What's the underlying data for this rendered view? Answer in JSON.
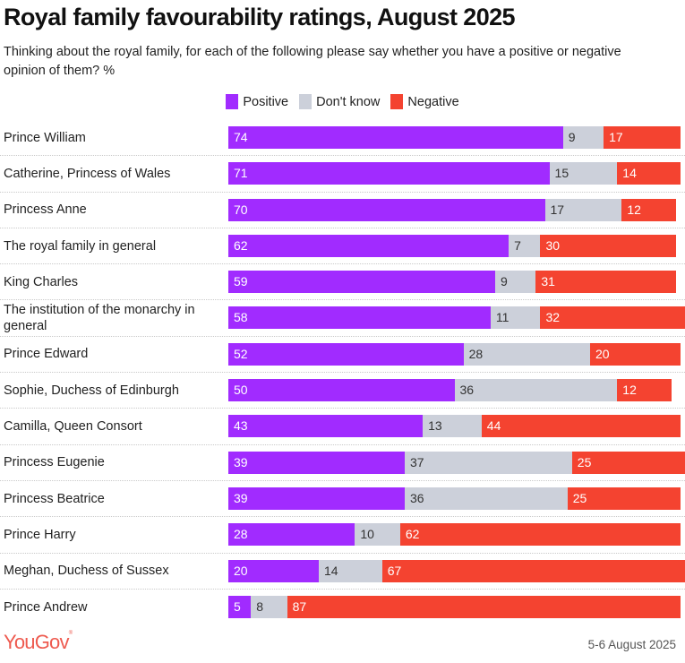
{
  "chart_data": {
    "type": "bar",
    "orientation": "horizontal",
    "stacked": true,
    "title": "Royal family favourability ratings, August 2025",
    "subtitle": "Thinking about the royal family, for each of the following please say whether you have a positive or negative opinion of them? %",
    "xlabel": "",
    "ylabel": "",
    "xlim": [
      0,
      100
    ],
    "grid": false,
    "legend_position": "top-center",
    "categories": [
      "Prince William",
      "Catherine, Princess of Wales",
      "Princess Anne",
      "The royal family in general",
      "King Charles",
      "The institution of the monarchy in general",
      "Prince Edward",
      "Sophie, Duchess of Edinburgh",
      "Camilla, Queen Consort",
      "Princess Eugenie",
      "Princess Beatrice",
      "Prince Harry",
      "Meghan, Duchess of Sussex",
      "Prince Andrew"
    ],
    "series": [
      {
        "name": "Positive",
        "key": "pos",
        "color": "#a12bff",
        "values": [
          74,
          71,
          70,
          62,
          59,
          58,
          52,
          50,
          43,
          39,
          39,
          28,
          20,
          5
        ]
      },
      {
        "name": "Don't know",
        "key": "dk",
        "color": "#ccd0da",
        "values": [
          9,
          15,
          17,
          7,
          9,
          11,
          28,
          36,
          13,
          37,
          36,
          10,
          14,
          8
        ]
      },
      {
        "name": "Negative",
        "key": "neg",
        "color": "#f44330",
        "values": [
          17,
          14,
          12,
          30,
          31,
          32,
          20,
          12,
          44,
          25,
          25,
          62,
          67,
          87
        ]
      }
    ]
  },
  "footer": {
    "brand": "YouGov",
    "brand_mark": "®",
    "date": "5-6 August 2025"
  }
}
